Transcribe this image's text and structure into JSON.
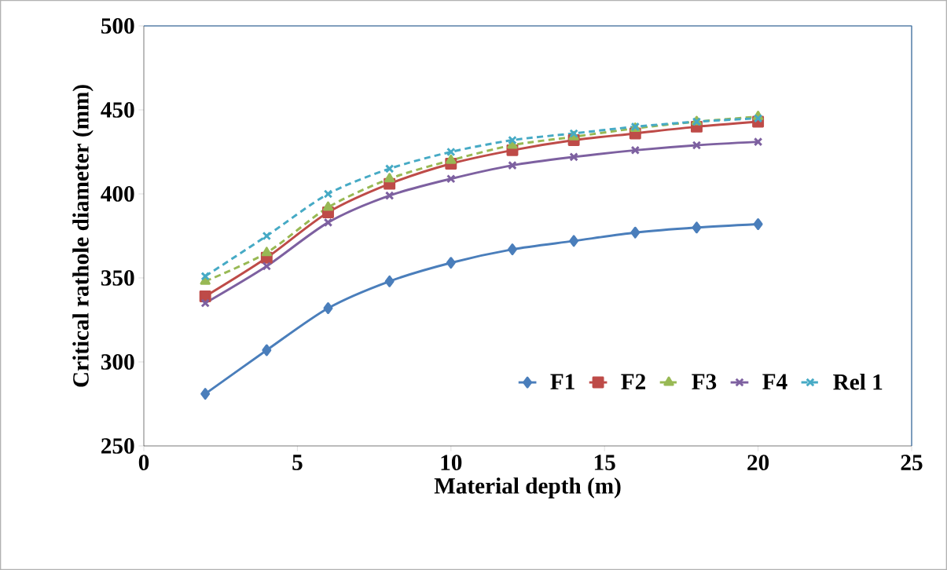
{
  "chart_data": {
    "type": "line",
    "xlabel": "Material depth (m)",
    "ylabel": "Critical rathole diameter (mm)",
    "x": [
      2,
      4,
      6,
      8,
      10,
      12,
      14,
      16,
      18,
      20
    ],
    "series": [
      {
        "name": "F1",
        "color": "#4a7ebb",
        "marker": "diamond",
        "line_style": "solid",
        "values": [
          281,
          307,
          332,
          348,
          359,
          367,
          372,
          377,
          380,
          382
        ]
      },
      {
        "name": "F2",
        "color": "#be4b48",
        "marker": "square",
        "line_style": "solid",
        "values": [
          339,
          362,
          389,
          406,
          418,
          426,
          432,
          436,
          440,
          443
        ]
      },
      {
        "name": "F3",
        "color": "#98b954",
        "marker": "triangle",
        "line_style": "dashed",
        "values": [
          348,
          365,
          392,
          409,
          420,
          429,
          434,
          439,
          443,
          446
        ]
      },
      {
        "name": "F4",
        "color": "#7d60a0",
        "marker": "cross",
        "line_style": "solid",
        "values": [
          335,
          357,
          383,
          399,
          409,
          417,
          422,
          426,
          429,
          431
        ]
      },
      {
        "name": "Rel 1",
        "color": "#46aac5",
        "marker": "cross",
        "line_style": "dashed",
        "values": [
          351,
          375,
          400,
          415,
          425,
          432,
          436,
          440,
          443,
          445
        ]
      }
    ],
    "xlim": [
      0,
      25
    ],
    "xticks": [
      0,
      5,
      10,
      15,
      20,
      25
    ],
    "ylim": [
      250,
      500
    ],
    "yticks": [
      250,
      300,
      350,
      400,
      450,
      500
    ],
    "grid": false,
    "legend": "bottom right"
  }
}
